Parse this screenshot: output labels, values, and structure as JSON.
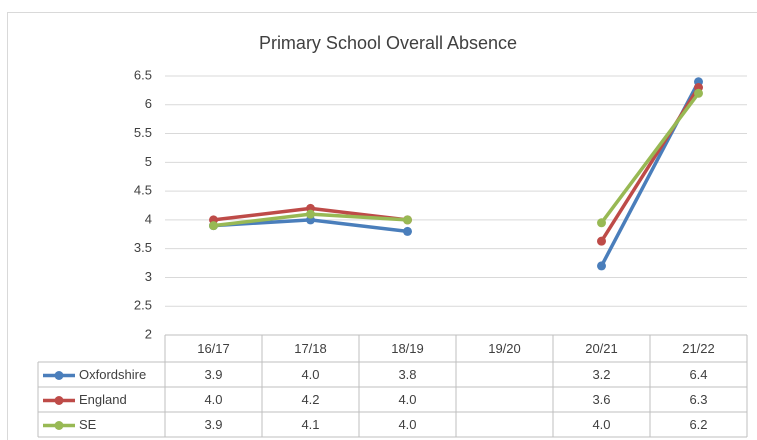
{
  "chart_data": {
    "type": "line",
    "title": "Primary School Overall Absence",
    "categories": [
      "16/17",
      "17/18",
      "18/19",
      "19/20",
      "20/21",
      "21/22"
    ],
    "series": [
      {
        "name": "Oxfordshire",
        "color": "#4a7ebb",
        "values": [
          3.9,
          4.0,
          3.8,
          null,
          3.2,
          6.4
        ],
        "value_labels": [
          "3.9",
          "4.0",
          "3.8",
          null,
          "3.2",
          "6.4"
        ]
      },
      {
        "name": "England",
        "color": "#be4b48",
        "values": [
          4.0,
          4.2,
          4.0,
          null,
          3.63,
          6.3
        ],
        "value_labels": [
          "4.0",
          "4.2",
          "4.0",
          null,
          "3.6",
          "6.3"
        ]
      },
      {
        "name": "SE",
        "color": "#98b954",
        "values": [
          3.9,
          4.1,
          4.0,
          null,
          3.95,
          6.2
        ],
        "value_labels": [
          "3.9",
          "4.1",
          "4.0",
          null,
          "4.0",
          "6.2"
        ]
      }
    ],
    "ylim": [
      2,
      6.5
    ],
    "yticks": [
      2,
      2.5,
      3,
      3.5,
      4,
      4.5,
      5,
      5.5,
      6,
      6.5
    ],
    "grid": true
  }
}
